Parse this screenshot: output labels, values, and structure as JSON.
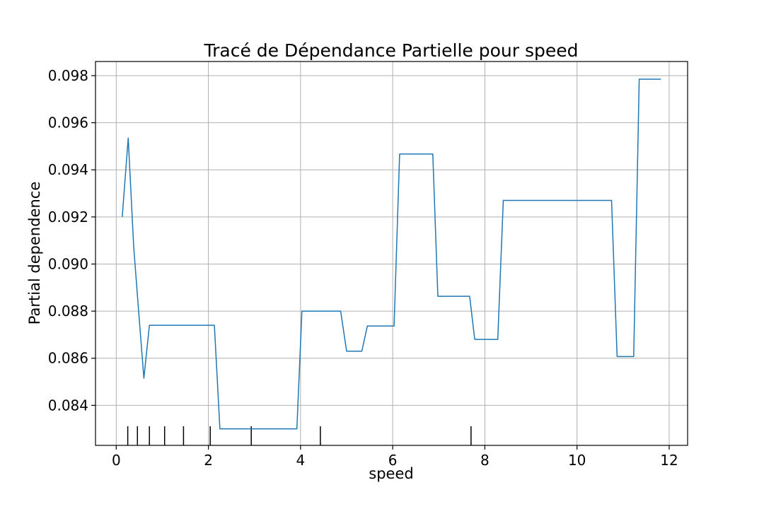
{
  "chart_data": {
    "type": "line",
    "title": "Tracé de Dépendance Partielle pour speed",
    "xlabel": "speed",
    "ylabel": "Partial dependence",
    "xlim": [
      -0.45,
      12.4
    ],
    "ylim": [
      0.0823,
      0.0986
    ],
    "xticks": [
      0,
      2,
      4,
      6,
      8,
      10,
      12
    ],
    "xtick_labels": [
      "0",
      "2",
      "4",
      "6",
      "8",
      "10",
      "12"
    ],
    "yticks": [
      0.084,
      0.086,
      0.088,
      0.09,
      0.092,
      0.094,
      0.096,
      0.098
    ],
    "ytick_labels": [
      "0.084",
      "0.086",
      "0.088",
      "0.090",
      "0.092",
      "0.094",
      "0.096",
      "0.098"
    ],
    "grid": true,
    "line_color": "#1f77b4",
    "series": [
      {
        "x": [
          0.13,
          0.26,
          0.38,
          0.49,
          0.6,
          0.72,
          2.13,
          2.25,
          3.92,
          4.03,
          4.87,
          5.0,
          5.33,
          5.45,
          6.03,
          6.15,
          6.87,
          6.98,
          7.67,
          7.78,
          8.28,
          8.4,
          10.75,
          10.87,
          11.23,
          11.35,
          11.82
        ],
        "y": [
          0.092,
          0.09535,
          0.0907,
          0.0879,
          0.08515,
          0.0874,
          0.0874,
          0.083,
          0.083,
          0.088,
          0.088,
          0.0863,
          0.0863,
          0.08737,
          0.08737,
          0.09467,
          0.09467,
          0.08863,
          0.08863,
          0.0868,
          0.0868,
          0.0927,
          0.0927,
          0.08607,
          0.08607,
          0.09785,
          0.09785
        ]
      }
    ],
    "rug": [
      0.25,
      0.46,
      0.72,
      1.05,
      1.46,
      2.04,
      2.93,
      4.43,
      7.7
    ]
  }
}
